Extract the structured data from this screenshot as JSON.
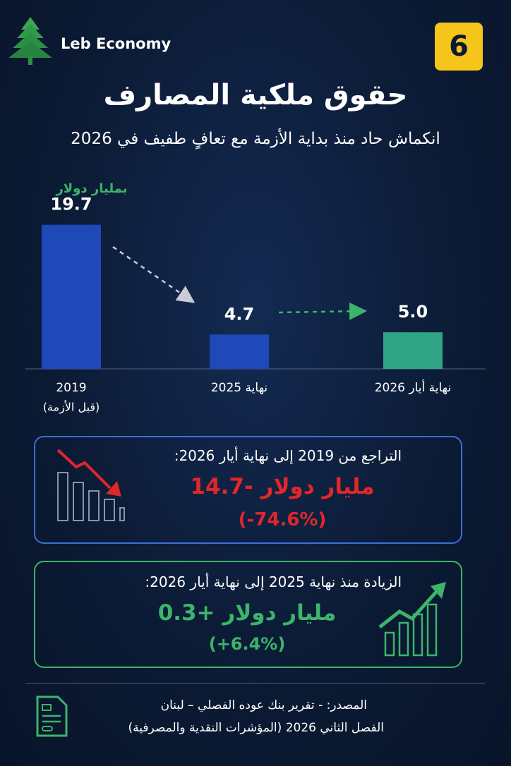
{
  "header": {
    "brand": "Leb Economy",
    "badge": "6"
  },
  "chart_data": {
    "type": "bar",
    "title": "حقوق ملكية المصارف",
    "subtitle": "انكماش حاد منذ بداية الأزمة مع تعافٍ طفيف في 2026",
    "y_label": "بمليار دولار",
    "categories": [
      "2019",
      "نهاية 2025",
      "نهاية أيار 2026"
    ],
    "category_notes": [
      "(قبل الأزمة)",
      null,
      null
    ],
    "values": [
      19.7,
      4.7,
      5.0
    ],
    "value_labels": [
      "19.7",
      "4.7",
      "5.0"
    ],
    "colors": [
      "#1f48b8",
      "#1f48b8",
      "#2fa585"
    ],
    "ylim": [
      0,
      21.5
    ]
  },
  "decline": {
    "heading": "التراجع من 2019 إلى نهاية أيار 2026:",
    "amount": "14.7- مليار دولار",
    "percent": "(-74.6%)"
  },
  "increase": {
    "heading": "الزيادة منذ نهاية 2025 إلى نهاية أيار 2026:",
    "amount": "0.3+ مليار دولار",
    "percent": "(+6.4%)"
  },
  "source": {
    "line1": "المصدر: - تقرير بنك عوده الفصلي – لبنان",
    "line2": "الفصل الثاني 2026 (المؤشرات النقدية والمصرفية)"
  }
}
